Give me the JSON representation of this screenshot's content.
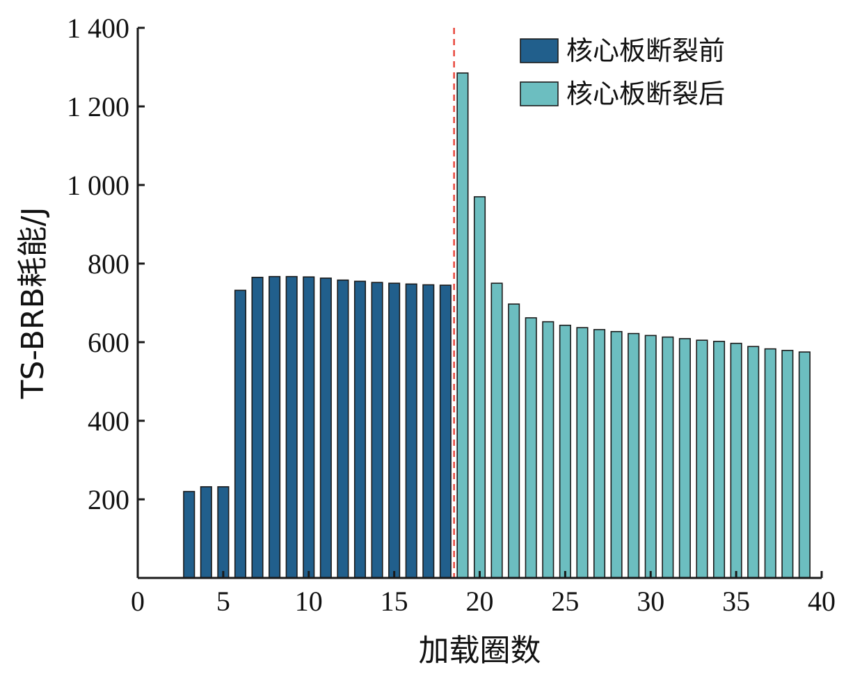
{
  "chart_data": {
    "type": "bar",
    "xlabel": "加载圈数",
    "ylabel": "TS-BRB耗能/J",
    "xlim": [
      0,
      40
    ],
    "ylim": [
      0,
      1400
    ],
    "xticks": [
      0,
      5,
      10,
      15,
      20,
      25,
      30,
      35,
      40
    ],
    "xtick_labels": [
      "0",
      "5",
      "10",
      "15",
      "20",
      "25",
      "30",
      "35",
      "40"
    ],
    "yticks": [
      200,
      400,
      600,
      800,
      1000,
      1200,
      1400
    ],
    "ytick_labels": [
      "200",
      "400",
      "600",
      "800",
      "1 000",
      "1 200",
      "1 400"
    ],
    "grid": false,
    "legend_position": "top-right",
    "break_line_x": 18.5,
    "colors": {
      "before": "#215f8c",
      "after": "#6cbec0",
      "break_line": "#e8473d"
    },
    "series": [
      {
        "name": "核心板断裂前",
        "color": "#215f8c",
        "x": [
          3,
          4,
          5,
          6,
          7,
          8,
          9,
          10,
          11,
          12,
          13,
          14,
          15,
          16,
          17,
          18
        ],
        "values": [
          220,
          232,
          232,
          732,
          765,
          767,
          767,
          766,
          763,
          758,
          755,
          752,
          750,
          748,
          746,
          745
        ]
      },
      {
        "name": "核心板断裂后",
        "color": "#6cbec0",
        "x": [
          19,
          20,
          21,
          22,
          23,
          24,
          25,
          26,
          27,
          28,
          29,
          30,
          31,
          32,
          33,
          34,
          35,
          36,
          37,
          38,
          39
        ],
        "values": [
          1285,
          970,
          750,
          697,
          662,
          652,
          643,
          637,
          632,
          627,
          622,
          617,
          613,
          609,
          605,
          602,
          597,
          589,
          583,
          579,
          575
        ]
      }
    ]
  }
}
